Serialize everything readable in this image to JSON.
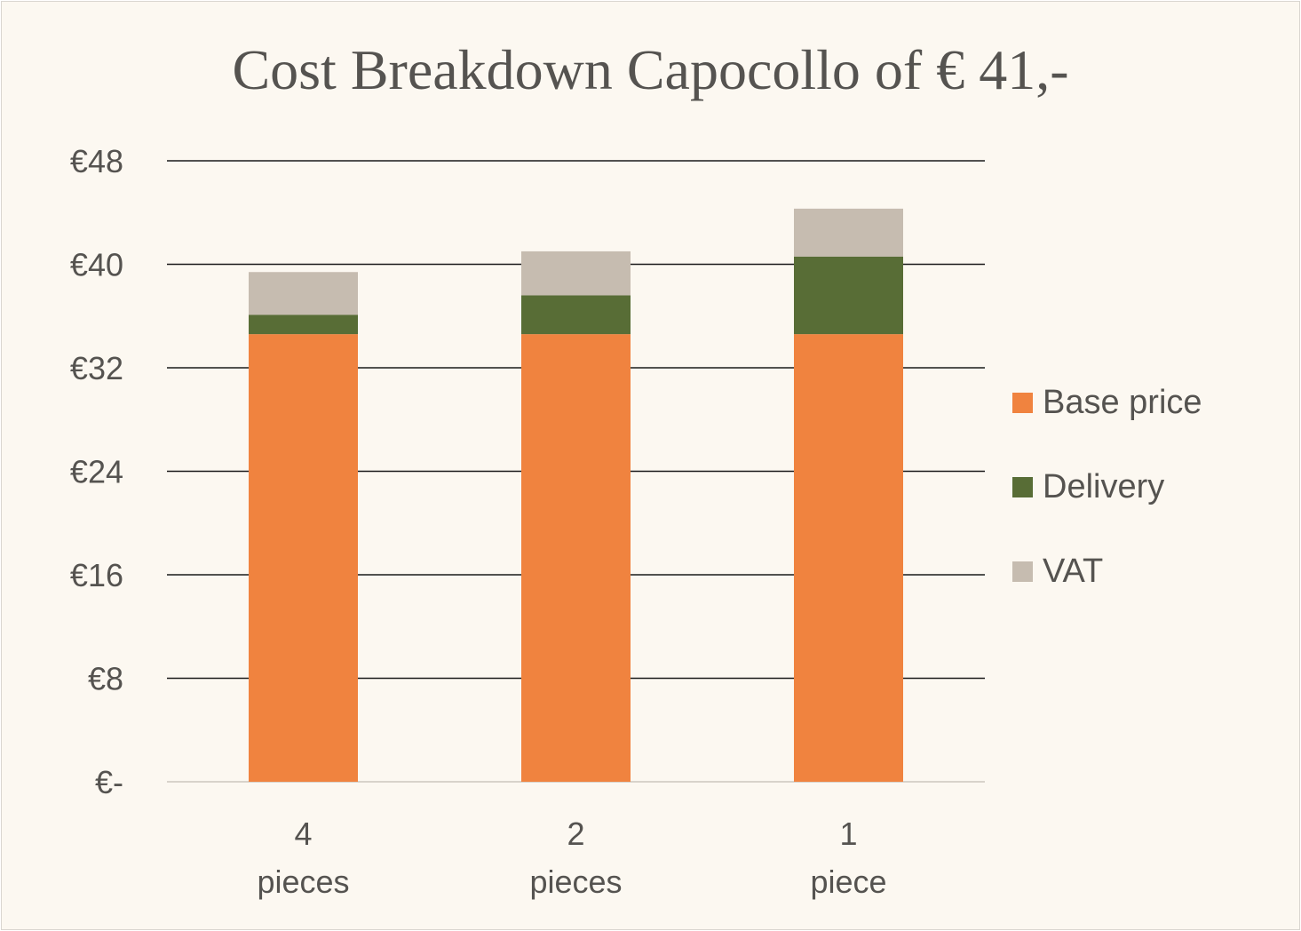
{
  "chart_data": {
    "type": "bar",
    "stacked": true,
    "title": "Cost Breakdown Capocollo of € 41,-",
    "categories": [
      [
        "4",
        "pieces"
      ],
      [
        "2",
        "pieces"
      ],
      [
        "1",
        "piece"
      ]
    ],
    "series": [
      {
        "name": "Base price",
        "color": "#f0833f",
        "values": [
          34.6,
          34.6,
          34.6
        ]
      },
      {
        "name": "Delivery",
        "color": "#586d36",
        "values": [
          1.5,
          3.0,
          6.0
        ]
      },
      {
        "name": "VAT",
        "color": "#c6bcb0",
        "values": [
          3.3,
          3.4,
          3.7
        ]
      }
    ],
    "ylim": [
      0,
      48
    ],
    "yticks": [
      {
        "value": 0,
        "label": "€-"
      },
      {
        "value": 8,
        "label": "€8"
      },
      {
        "value": 16,
        "label": "€16"
      },
      {
        "value": 24,
        "label": "€24"
      },
      {
        "value": 32,
        "label": "€32"
      },
      {
        "value": 40,
        "label": "€40"
      },
      {
        "value": 48,
        "label": "€48"
      }
    ],
    "grid": true,
    "legend_position": "right"
  }
}
